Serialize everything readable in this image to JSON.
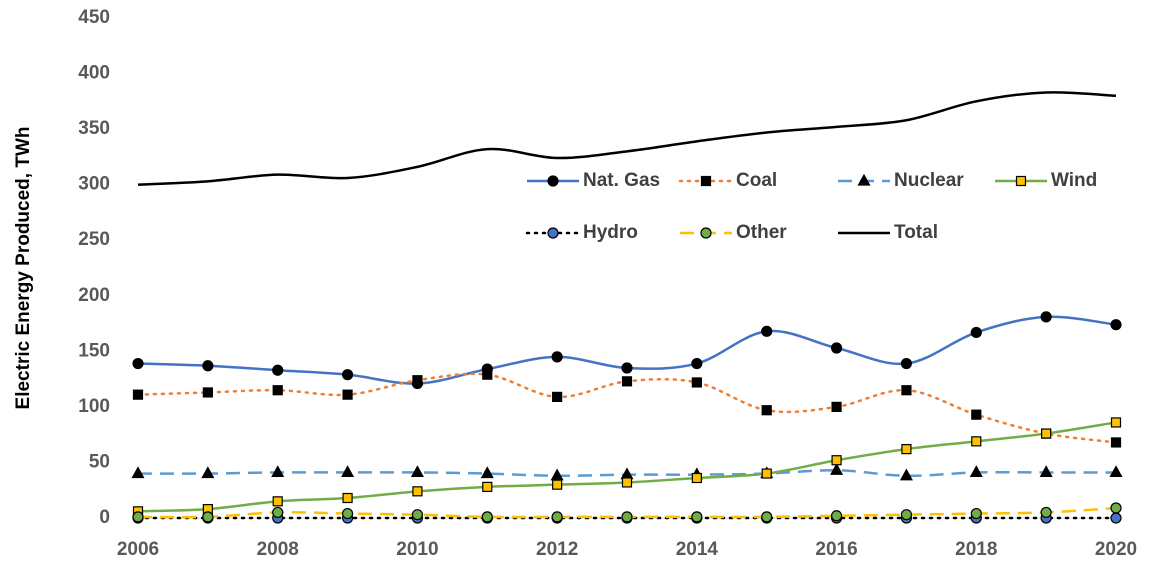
{
  "chart_data": {
    "type": "line",
    "y_label": "Electric Energy Produced, TWh",
    "x": [
      2006,
      2007,
      2008,
      2009,
      2010,
      2011,
      2012,
      2013,
      2014,
      2015,
      2016,
      2017,
      2018,
      2019,
      2020
    ],
    "xlim": [
      2006,
      2020
    ],
    "xticks": [
      2006,
      2008,
      2010,
      2012,
      2014,
      2016,
      2018,
      2020
    ],
    "ylim": [
      0,
      450
    ],
    "yticks": [
      0,
      50,
      100,
      150,
      200,
      250,
      300,
      350,
      400,
      450
    ],
    "grid": false,
    "smooth": true,
    "series": [
      {
        "name": "Nat. Gas",
        "color": "#4472c4",
        "dash": "solid",
        "marker": "circle",
        "marker_color": "#000000",
        "values": [
          139,
          137,
          133,
          129,
          121,
          134,
          145,
          135,
          139,
          168,
          153,
          139,
          167,
          181,
          174
        ]
      },
      {
        "name": "Coal",
        "color": "#ed7d31",
        "dash": "dot",
        "marker": "square",
        "marker_color": "#000000",
        "values": [
          111,
          113,
          115,
          111,
          124,
          129,
          109,
          123,
          122,
          97,
          100,
          115,
          93,
          76,
          68
        ]
      },
      {
        "name": "Nuclear",
        "color": "#5b9bd5",
        "dash": "dash",
        "marker": "triangle",
        "marker_color": "#000000",
        "values": [
          40,
          40,
          41,
          41,
          41,
          40,
          38,
          39,
          39,
          40,
          43,
          38,
          41,
          41,
          41
        ]
      },
      {
        "name": "Wind",
        "color": "#70ad47",
        "dash": "solid",
        "marker": "square",
        "marker_color": "#ffc000",
        "values": [
          6,
          8,
          15,
          18,
          24,
          28,
          30,
          32,
          36,
          40,
          52,
          62,
          69,
          76,
          86
        ]
      },
      {
        "name": "Hydro",
        "color": "#000000",
        "dash": "dot",
        "marker": "circle",
        "marker_color": "#4472c4",
        "values": [
          0,
          0,
          0,
          0,
          0,
          0,
          0,
          0,
          0,
          0,
          0,
          0,
          0,
          0,
          0
        ]
      },
      {
        "name": "Other",
        "color": "#ffc000",
        "dash": "dash",
        "marker": "circle",
        "marker_color": "#70ad47",
        "values": [
          1,
          1,
          5,
          4,
          3,
          1,
          1,
          1,
          1,
          1,
          2,
          3,
          4,
          5,
          9
        ]
      },
      {
        "name": "Total",
        "color": "#000000",
        "dash": "solid",
        "marker": null,
        "marker_color": null,
        "values": [
          300,
          303,
          309,
          306,
          316,
          332,
          324,
          330,
          339,
          347,
          352,
          358,
          375,
          383,
          380
        ]
      }
    ]
  }
}
